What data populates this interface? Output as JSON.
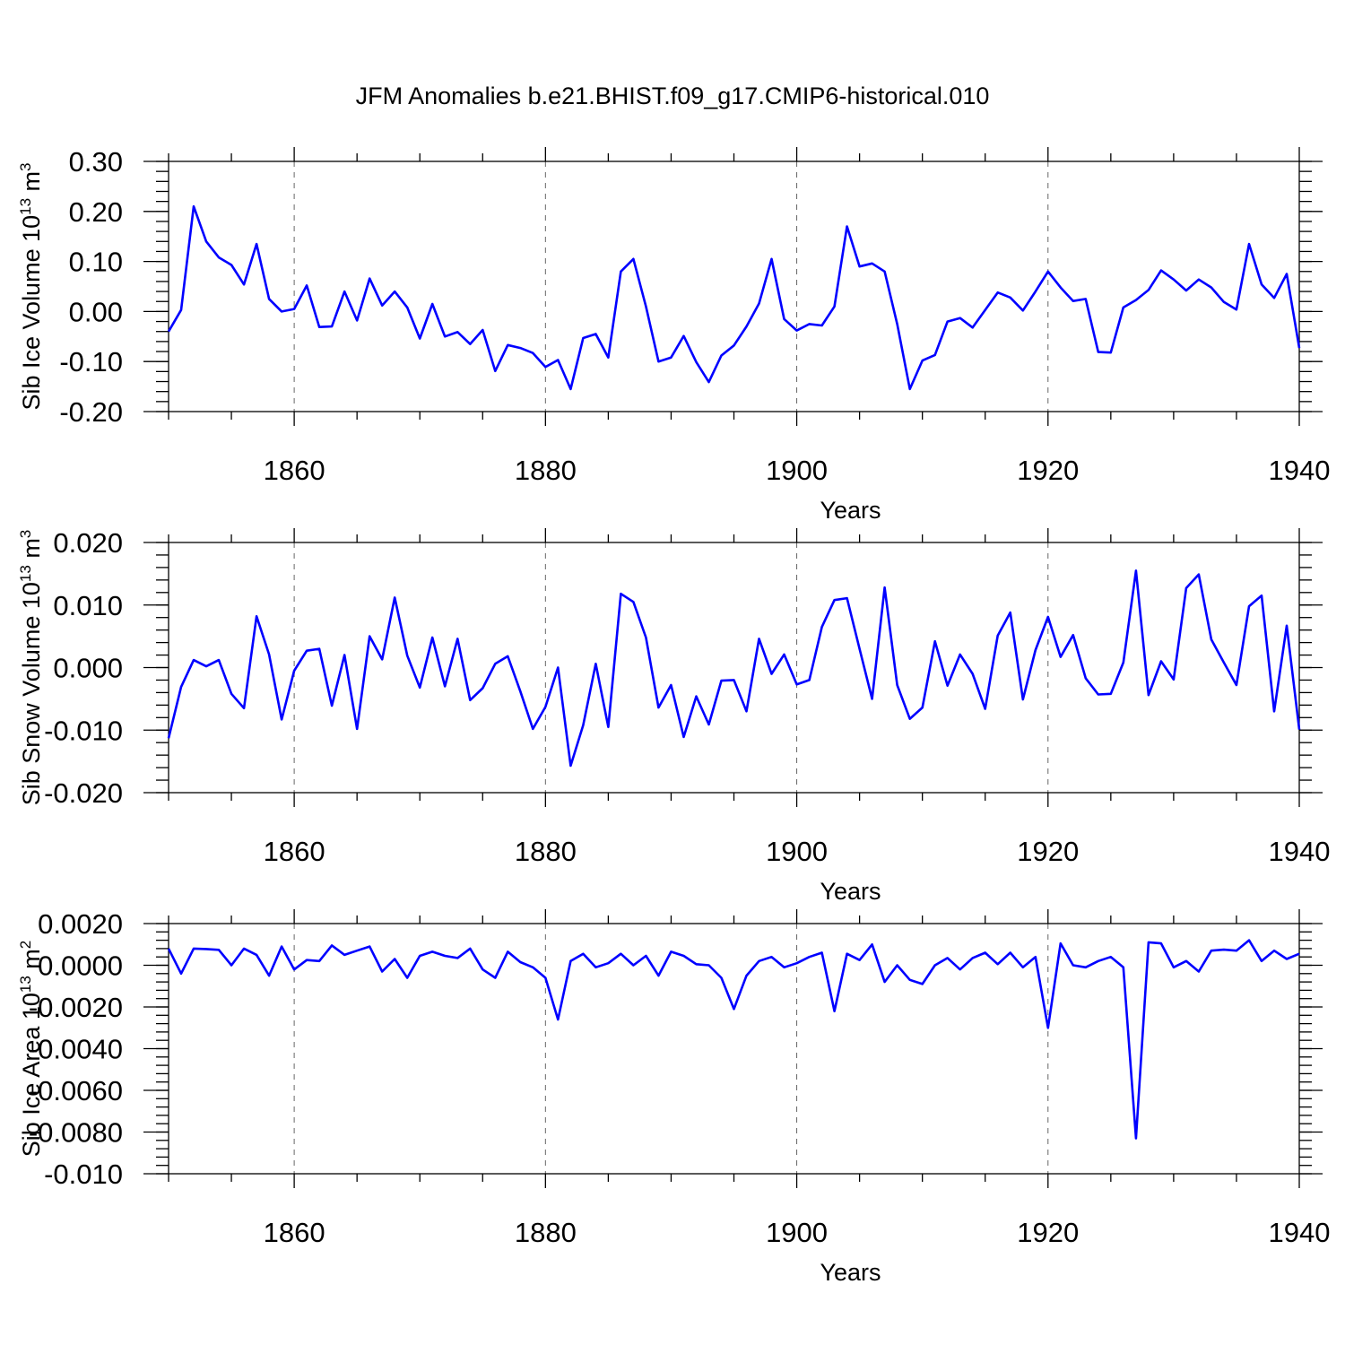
{
  "title": "JFM Anomalies b.e21.BHIST.f09_g17.CMIP6-historical.010",
  "colors": {
    "series": "#0000ff",
    "frame": "#000000",
    "grid": "#666666"
  },
  "chart_data": [
    {
      "type": "line",
      "title": "",
      "xlabel": "Years",
      "ylabel": "Sib Ice Volume 10",
      "ylabel_sup": "13",
      "ylabel_unit": " m",
      "ylabel_unit_sup": "3",
      "xlim": [
        1850,
        1940
      ],
      "ylim": [
        -0.2,
        0.3
      ],
      "x_ticks": [
        1860,
        1880,
        1900,
        1920,
        1940
      ],
      "x_tick_labels": [
        "1860",
        "1880",
        "1900",
        "1920",
        "1940"
      ],
      "y_ticks": [
        -0.2,
        -0.1,
        0.0,
        0.1,
        0.2,
        0.3
      ],
      "y_tick_labels": [
        "-0.20",
        "-0.10",
        "0.00",
        "0.10",
        "0.20",
        "0.30"
      ],
      "y_minor_step": 0.02,
      "grid": "vertical dashed at major x ticks",
      "series": [
        {
          "name": "Sib Ice Volume",
          "x_start": 1850,
          "values": [
            -0.04,
            0.003,
            0.21,
            0.14,
            0.108,
            0.093,
            0.054,
            0.135,
            0.025,
            0.0,
            0.005,
            0.052,
            -0.031,
            -0.03,
            0.04,
            -0.018,
            0.066,
            0.012,
            0.04,
            0.008,
            -0.054,
            0.015,
            -0.05,
            -0.041,
            -0.065,
            -0.037,
            -0.119,
            -0.067,
            -0.073,
            -0.083,
            -0.111,
            -0.097,
            -0.155,
            -0.053,
            -0.045,
            -0.092,
            0.08,
            0.105,
            0.01,
            -0.1,
            -0.092,
            -0.049,
            -0.101,
            -0.141,
            -0.088,
            -0.068,
            -0.03,
            0.016,
            0.105,
            -0.015,
            -0.038,
            -0.025,
            -0.028,
            0.01,
            0.17,
            0.09,
            0.096,
            0.08,
            -0.025,
            -0.155,
            -0.098,
            -0.087,
            -0.02,
            -0.013,
            -0.032,
            0.003,
            0.038,
            0.028,
            0.002,
            0.04,
            0.08,
            0.048,
            0.021,
            0.025,
            -0.081,
            -0.082,
            0.008,
            0.023,
            0.043,
            0.082,
            0.064,
            0.042,
            0.064,
            0.048,
            0.019,
            0.004,
            0.135,
            0.054,
            0.027,
            0.075,
            -0.073
          ]
        }
      ]
    },
    {
      "type": "line",
      "title": "",
      "xlabel": "Years",
      "ylabel": "Sib Snow Volume 10",
      "ylabel_sup": "13",
      "ylabel_unit": " m",
      "ylabel_unit_sup": "3",
      "xlim": [
        1850,
        1940
      ],
      "ylim": [
        -0.02,
        0.02
      ],
      "x_ticks": [
        1860,
        1880,
        1900,
        1920,
        1940
      ],
      "x_tick_labels": [
        "1860",
        "1880",
        "1900",
        "1920",
        "1940"
      ],
      "y_ticks": [
        -0.02,
        -0.01,
        0.0,
        0.01,
        0.02
      ],
      "y_tick_labels": [
        "-0.020",
        "-0.010",
        "0.000",
        "0.010",
        "0.020"
      ],
      "y_minor_step": 0.002,
      "grid": "vertical dashed at major x ticks",
      "series": [
        {
          "name": "Sib Snow Volume",
          "x_start": 1850,
          "values": [
            -0.0113,
            -0.0031,
            0.0012,
            0.0002,
            0.0012,
            -0.0042,
            -0.0065,
            0.0082,
            0.0021,
            -0.0083,
            -0.0005,
            0.0027,
            0.003,
            -0.0061,
            0.002,
            -0.0098,
            0.005,
            0.0013,
            0.0112,
            0.0019,
            -0.0032,
            0.0048,
            -0.003,
            0.0046,
            -0.0052,
            -0.0033,
            0.0006,
            0.0018,
            -0.0038,
            -0.0098,
            -0.0063,
            0.0,
            -0.0157,
            -0.0092,
            0.0006,
            -0.0095,
            0.0118,
            0.0105,
            0.0048,
            -0.0064,
            -0.0028,
            -0.0111,
            -0.0046,
            -0.0091,
            -0.0021,
            -0.002,
            -0.007,
            0.0046,
            -0.001,
            0.0021,
            -0.0027,
            -0.002,
            0.0065,
            0.0108,
            0.0111,
            0.003,
            -0.005,
            0.0128,
            -0.0028,
            -0.0082,
            -0.0064,
            0.0042,
            -0.0029,
            0.0021,
            -0.001,
            -0.0066,
            0.0051,
            0.0088,
            -0.0051,
            0.0028,
            0.0081,
            0.0017,
            0.0052,
            -0.0017,
            -0.0043,
            -0.0042,
            0.0008,
            0.0155,
            -0.0044,
            0.001,
            -0.0019,
            0.0127,
            0.0149,
            0.0045,
            0.0008,
            -0.0028,
            0.0098,
            0.0115,
            -0.007,
            0.0067,
            -0.0099
          ]
        }
      ]
    },
    {
      "type": "line",
      "title": "",
      "xlabel": "Years",
      "ylabel": "Sib Ice Area 10",
      "ylabel_sup": "13",
      "ylabel_unit": " m",
      "ylabel_unit_sup": "2",
      "xlim": [
        1850,
        1940
      ],
      "ylim": [
        -0.01,
        0.002
      ],
      "x_ticks": [
        1860,
        1880,
        1900,
        1920,
        1940
      ],
      "x_tick_labels": [
        "1860",
        "1880",
        "1900",
        "1920",
        "1940"
      ],
      "y_ticks": [
        -0.01,
        -0.008,
        -0.006,
        -0.004,
        -0.002,
        0.0,
        0.002
      ],
      "y_tick_labels": [
        "-0.010",
        "-0.0080",
        "-0.0060",
        "-0.0040",
        "-0.0020",
        "0.0000",
        "0.0020"
      ],
      "y_minor_step": 0.0004,
      "grid": "vertical dashed at major x ticks",
      "series": [
        {
          "name": "Sib Ice Area",
          "x_start": 1850,
          "values": [
            0.0008,
            -0.0004,
            0.0008,
            0.00078,
            0.00074,
            0.0,
            0.0008,
            0.0005,
            -0.0005,
            0.0009,
            -0.0002,
            0.00025,
            0.0002,
            0.00095,
            0.0005,
            0.0007,
            0.0009,
            -0.0003,
            0.0003,
            -0.0006,
            0.00045,
            0.00065,
            0.00045,
            0.00035,
            0.0008,
            -0.0002,
            -0.0006,
            0.00065,
            0.00015,
            -0.0001,
            -0.0006,
            -0.0026,
            0.0002,
            0.00055,
            -0.0001,
            0.0001,
            0.00055,
            0.0,
            0.00045,
            -0.0005,
            0.00065,
            0.00045,
            5e-05,
            0.0,
            -0.0006,
            -0.0021,
            -0.0005,
            0.0002,
            0.0004,
            -0.0001,
            0.0001,
            0.0004,
            0.0006,
            -0.0022,
            0.00055,
            0.00025,
            0.001,
            -0.0008,
            0.0,
            -0.0007,
            -0.0009,
            0.0,
            0.00035,
            -0.0002,
            0.00035,
            0.0006,
            5e-05,
            0.0006,
            -0.0001,
            0.0004,
            -0.003,
            0.00105,
            0.0,
            -0.0001,
            0.0002,
            0.0004,
            -0.0001,
            -0.0083,
            0.0011,
            0.00105,
            -0.0001,
            0.0002,
            -0.0003,
            0.0007,
            0.00075,
            0.0007,
            0.0012,
            0.0002,
            0.0007,
            0.0003,
            0.00055
          ]
        }
      ]
    }
  ]
}
